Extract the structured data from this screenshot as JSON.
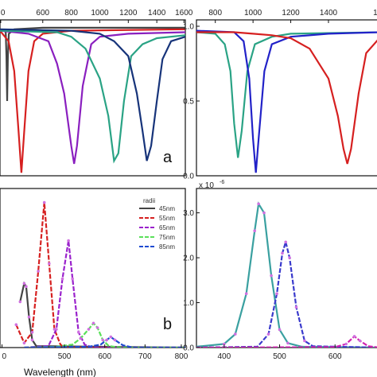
{
  "chart_data": [
    {
      "type": "line",
      "panel": "a",
      "xlim": [
        0,
        1600
      ],
      "xticks": [
        "0",
        "600",
        "800",
        "1000",
        "1200",
        "1400",
        "1600"
      ],
      "ylim": [
        0,
        1.0
      ],
      "yticks": [],
      "series": [
        {
          "color": "#444444",
          "points": [
            [
              320,
              0.98
            ],
            [
              340,
              0.96
            ],
            [
              345,
              0.8
            ],
            [
              350,
              0.5
            ],
            [
              355,
              0.8
            ],
            [
              362,
              0.95
            ],
            [
              400,
              0.98
            ],
            [
              600,
              0.99
            ],
            [
              1600,
              0.99
            ]
          ]
        },
        {
          "color": "#d62020",
          "points": [
            [
              300,
              0.97
            ],
            [
              360,
              0.9
            ],
            [
              400,
              0.7
            ],
            [
              430,
              0.3
            ],
            [
              450,
              0.02
            ],
            [
              470,
              0.3
            ],
            [
              500,
              0.7
            ],
            [
              540,
              0.9
            ],
            [
              600,
              0.95
            ],
            [
              800,
              0.97
            ],
            [
              1600,
              0.98
            ]
          ]
        },
        {
          "color": "#8a1fbf",
          "points": [
            [
              300,
              0.97
            ],
            [
              500,
              0.95
            ],
            [
              640,
              0.9
            ],
            [
              700,
              0.75
            ],
            [
              750,
              0.55
            ],
            [
              800,
              0.2
            ],
            [
              820,
              0.08
            ],
            [
              840,
              0.2
            ],
            [
              880,
              0.6
            ],
            [
              940,
              0.88
            ],
            [
              1000,
              0.93
            ],
            [
              1200,
              0.95
            ],
            [
              1600,
              0.96
            ]
          ]
        },
        {
          "color": "#2aa385",
          "points": [
            [
              300,
              0.97
            ],
            [
              700,
              0.96
            ],
            [
              800,
              0.93
            ],
            [
              900,
              0.85
            ],
            [
              1000,
              0.65
            ],
            [
              1060,
              0.4
            ],
            [
              1100,
              0.1
            ],
            [
              1130,
              0.15
            ],
            [
              1170,
              0.5
            ],
            [
              1220,
              0.8
            ],
            [
              1300,
              0.88
            ],
            [
              1400,
              0.92
            ],
            [
              1600,
              0.94
            ]
          ]
        },
        {
          "color": "#17347a",
          "points": [
            [
              300,
              0.98
            ],
            [
              800,
              0.97
            ],
            [
              1000,
              0.95
            ],
            [
              1100,
              0.9
            ],
            [
              1200,
              0.8
            ],
            [
              1260,
              0.55
            ],
            [
              1300,
              0.3
            ],
            [
              1330,
              0.1
            ],
            [
              1360,
              0.2
            ],
            [
              1400,
              0.5
            ],
            [
              1440,
              0.78
            ],
            [
              1500,
              0.9
            ],
            [
              1600,
              0.93
            ]
          ]
        }
      ]
    },
    {
      "type": "line",
      "panel": "top-right",
      "xlim": [
        700,
        1670
      ],
      "xticks": [
        "800",
        "1000",
        "1200",
        "1400",
        "16"
      ],
      "ylim": [
        0,
        1.0
      ],
      "yticks": [
        "0.0",
        "0.5",
        "1.0"
      ],
      "series": [
        {
          "color": "#2aa385",
          "points": [
            [
              700,
              0.96
            ],
            [
              800,
              0.95
            ],
            [
              850,
              0.88
            ],
            [
              880,
              0.7
            ],
            [
              900,
              0.35
            ],
            [
              920,
              0.12
            ],
            [
              940,
              0.3
            ],
            [
              970,
              0.7
            ],
            [
              1010,
              0.88
            ],
            [
              1100,
              0.93
            ],
            [
              1200,
              0.95
            ],
            [
              1670,
              0.96
            ]
          ]
        },
        {
          "color": "#2222c8",
          "points": [
            [
              700,
              0.97
            ],
            [
              900,
              0.96
            ],
            [
              950,
              0.9
            ],
            [
              980,
              0.65
            ],
            [
              1000,
              0.25
            ],
            [
              1015,
              0.02
            ],
            [
              1030,
              0.25
            ],
            [
              1060,
              0.7
            ],
            [
              1100,
              0.88
            ],
            [
              1200,
              0.93
            ],
            [
              1400,
              0.95
            ],
            [
              1670,
              0.96
            ]
          ]
        },
        {
          "color": "#d62020",
          "points": [
            [
              700,
              0.96
            ],
            [
              900,
              0.96
            ],
            [
              1000,
              0.95
            ],
            [
              1100,
              0.94
            ],
            [
              1200,
              0.92
            ],
            [
              1300,
              0.85
            ],
            [
              1400,
              0.65
            ],
            [
              1450,
              0.4
            ],
            [
              1480,
              0.18
            ],
            [
              1500,
              0.08
            ],
            [
              1520,
              0.18
            ],
            [
              1560,
              0.55
            ],
            [
              1600,
              0.82
            ],
            [
              1670,
              0.92
            ]
          ]
        }
      ]
    },
    {
      "type": "line",
      "panel": "b",
      "xlim": [
        300,
        800
      ],
      "xticks": [
        "0",
        "500",
        "600",
        "700",
        "800"
      ],
      "xlabel": "Wavelength (nm)",
      "ylim": [
        0,
        1.0
      ],
      "yticks": [],
      "legend": {
        "title": "radii",
        "placement": "top-right",
        "entries": [
          "45nm",
          "55nm",
          "65nm",
          "75nm",
          "85nm"
        ]
      },
      "series": [
        {
          "name": "45nm",
          "color": "#444444",
          "points": [
            [
              390,
              0.3
            ],
            [
              400,
              0.42
            ],
            [
              405,
              0.4
            ],
            [
              412,
              0.2
            ],
            [
              420,
              0.05
            ],
            [
              430,
              0.01
            ],
            [
              800,
              0.0
            ]
          ]
        },
        {
          "name": "55nm",
          "color": "#d62020",
          "points": [
            [
              380,
              0.15
            ],
            [
              400,
              0.03
            ],
            [
              420,
              0.1
            ],
            [
              435,
              0.5
            ],
            [
              450,
              0.95
            ],
            [
              462,
              0.55
            ],
            [
              475,
              0.12
            ],
            [
              490,
              0.02
            ],
            [
              500,
              0.0
            ],
            [
              800,
              0.0
            ]
          ]
        },
        {
          "name": "65nm",
          "color": "#9a22cc",
          "points": [
            [
              400,
              0.0
            ],
            [
              460,
              0.01
            ],
            [
              480,
              0.12
            ],
            [
              495,
              0.45
            ],
            [
              510,
              0.7
            ],
            [
              520,
              0.45
            ],
            [
              535,
              0.1
            ],
            [
              550,
              0.02
            ],
            [
              570,
              0.0
            ],
            [
              800,
              0.0
            ]
          ]
        },
        {
          "name": "75nm",
          "color": "#5ae05a",
          "points": [
            [
              400,
              0.0
            ],
            [
              480,
              0.005
            ],
            [
              520,
              0.02
            ],
            [
              540,
              0.06
            ],
            [
              560,
              0.12
            ],
            [
              572,
              0.16
            ],
            [
              582,
              0.13
            ],
            [
              595,
              0.05
            ],
            [
              610,
              0.01
            ],
            [
              640,
              0.0
            ],
            [
              800,
              0.0
            ]
          ]
        },
        {
          "name": "85nm",
          "color": "#1f4bd1",
          "points": [
            [
              400,
              0.0
            ],
            [
              560,
              0.005
            ],
            [
              590,
              0.02
            ],
            [
              605,
              0.05
            ],
            [
              615,
              0.07
            ],
            [
              625,
              0.05
            ],
            [
              645,
              0.015
            ],
            [
              670,
              0.0
            ],
            [
              800,
              0.0
            ]
          ]
        }
      ]
    },
    {
      "type": "line",
      "panel": "bottom-right",
      "xlim": [
        350,
        680
      ],
      "xticks": [
        "400",
        "500",
        "600"
      ],
      "ylim": [
        0,
        3.4
      ],
      "yticks": [
        "0.0",
        "1.0",
        "2.0",
        "3.0"
      ],
      "scale_label": "x 10",
      "scale_exponent": "-6",
      "series": [
        {
          "color": "#3aa0a0",
          "points": [
            [
              350,
              0.02
            ],
            [
              400,
              0.08
            ],
            [
              420,
              0.3
            ],
            [
              440,
              1.2
            ],
            [
              455,
              2.6
            ],
            [
              462,
              3.2
            ],
            [
              472,
              3.0
            ],
            [
              485,
              1.6
            ],
            [
              500,
              0.4
            ],
            [
              515,
              0.1
            ],
            [
              540,
              0.02
            ],
            [
              680,
              0.0
            ]
          ]
        },
        {
          "color": "#3a3acc",
          "points": [
            [
              350,
              0.0
            ],
            [
              460,
              0.02
            ],
            [
              480,
              0.3
            ],
            [
              495,
              1.2
            ],
            [
              505,
              2.1
            ],
            [
              511,
              2.35
            ],
            [
              518,
              2.0
            ],
            [
              530,
              0.9
            ],
            [
              545,
              0.15
            ],
            [
              560,
              0.03
            ],
            [
              680,
              0.0
            ]
          ]
        },
        {
          "color": "#d020b0",
          "points": [
            [
              350,
              0.0
            ],
            [
              600,
              0.01
            ],
            [
              620,
              0.08
            ],
            [
              635,
              0.25
            ],
            [
              645,
              0.15
            ],
            [
              660,
              0.03
            ],
            [
              680,
              0.0
            ]
          ]
        }
      ]
    }
  ],
  "annotations": {
    "panel_a": "a",
    "panel_b": "b"
  }
}
